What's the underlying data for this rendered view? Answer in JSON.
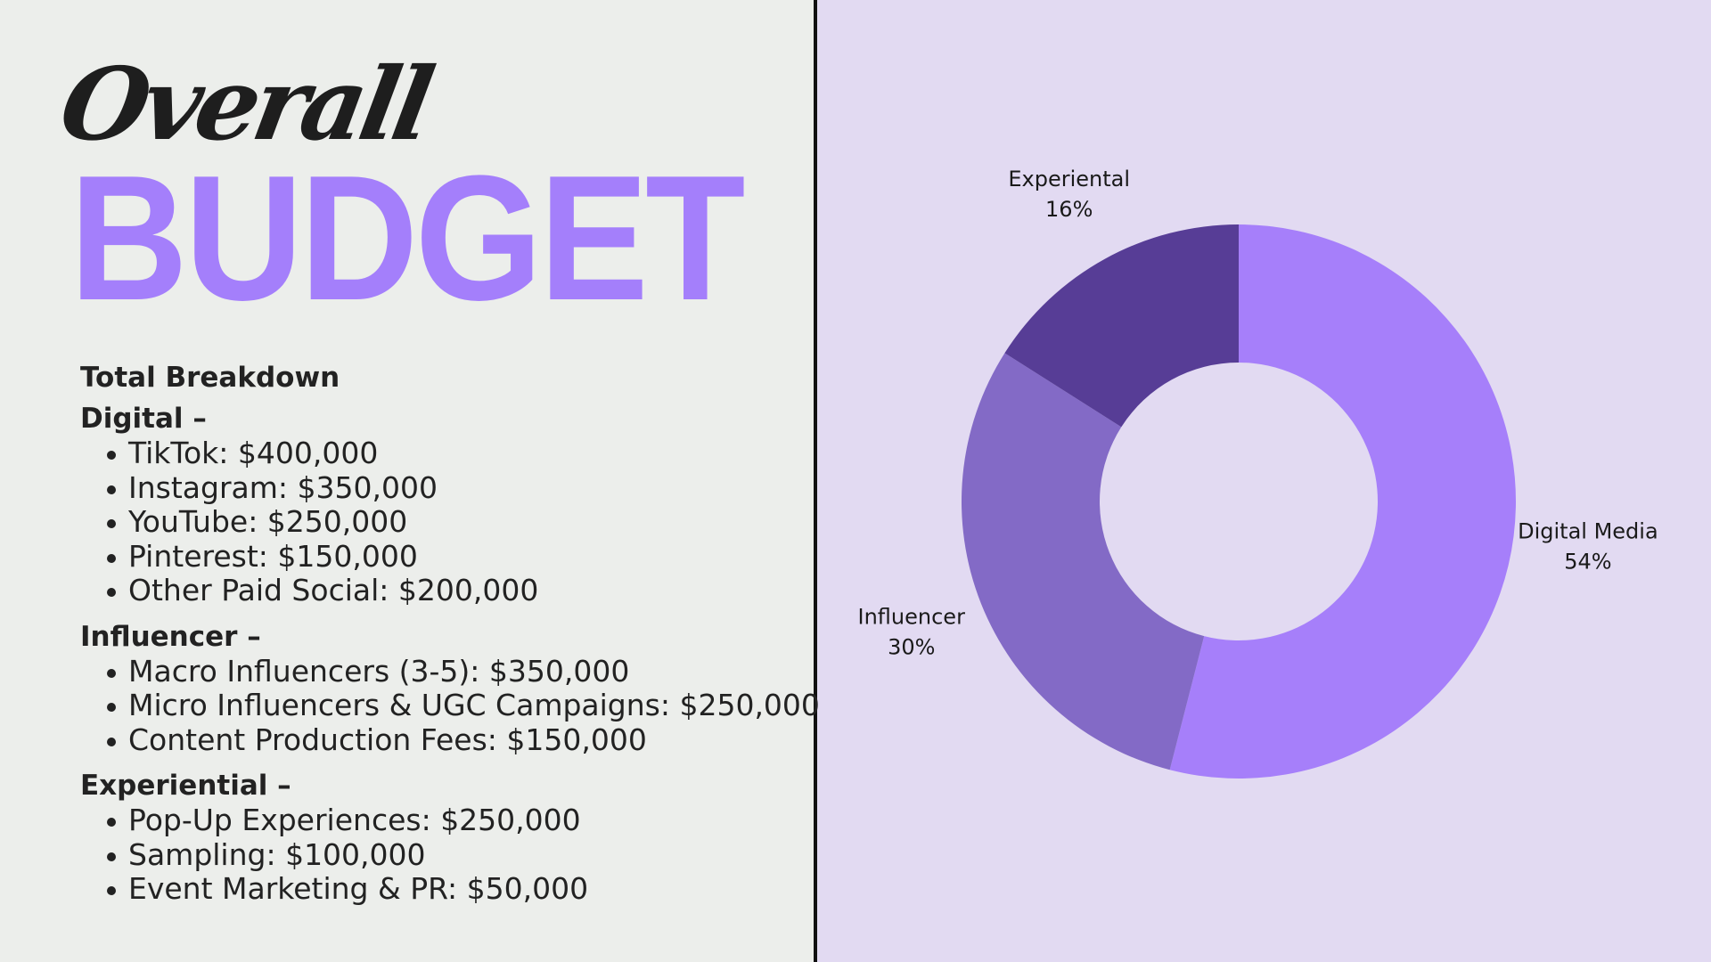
{
  "title": {
    "script": "Overall",
    "main": "BUDGET"
  },
  "breakdown": {
    "heading": "Total Breakdown",
    "groups": [
      {
        "heading": "Digital –",
        "items": [
          "TikTok: $400,000",
          "Instagram: $350,000",
          "YouTube: $250,000",
          "Pinterest: $150,000",
          "Other Paid Social: $200,000"
        ]
      },
      {
        "heading": "Influencer –",
        "items": [
          "Macro Influencers (3-5): $350,000",
          "Micro Influencers & UGC Campaigns: $250,000",
          "Content Production Fees: $150,000"
        ]
      },
      {
        "heading": "Experiential –",
        "items": [
          "Pop-Up Experiences: $250,000",
          "Sampling: $100,000",
          "Event Marketing & PR: $50,000"
        ]
      }
    ]
  },
  "colors": {
    "accent": "#a47ffb",
    "left_background": "#eceeeb",
    "right_background": "#e2daf2"
  },
  "chart_data": {
    "type": "pie",
    "style": "donut",
    "title": "",
    "legend": "none",
    "slices": [
      {
        "label": "Digital Media",
        "value": 54,
        "value_label": "54%",
        "color": "#a67ffa"
      },
      {
        "label": "Influencer",
        "value": 30,
        "value_label": "30%",
        "color": "#836ac6"
      },
      {
        "label": "Experiental",
        "value": 16,
        "value_label": "16%",
        "color": "#573d96"
      }
    ]
  }
}
